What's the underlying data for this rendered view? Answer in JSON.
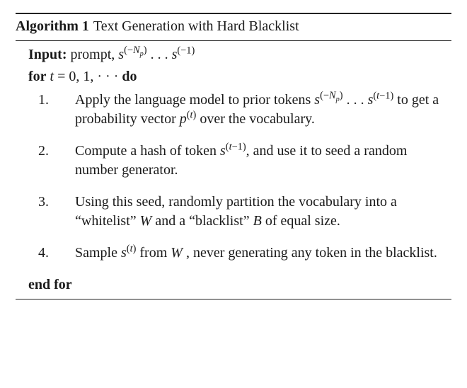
{
  "header": {
    "label": "Algorithm 1",
    "title": "Text Generation with Hard Blacklist"
  },
  "input": {
    "label": "Input:",
    "desc_pre": "prompt, ",
    "sym": "s",
    "exp_first_open": "(−",
    "exp_first_var": "N",
    "exp_first_sub": "p",
    "exp_first_close": ")",
    "ellipsis": " . . . ",
    "exp_last": "(−1)"
  },
  "forline": {
    "for": "for",
    "var": "t",
    "eq": " = 0, 1, · · · ",
    "do": "do"
  },
  "steps": [
    {
      "num": "1.",
      "pre": "Apply the language model to prior tokens ",
      "seq_s": "s",
      "seq_exp1_open": "(−",
      "seq_exp1_var": "N",
      "seq_exp1_sub": "p",
      "seq_exp1_close": ")",
      "ellipsis": " . . . ",
      "seq_exp2_open": "(",
      "seq_exp2_var": "t",
      "seq_exp2_rest": "−1)",
      "mid": " to get a probability vector ",
      "p": "p",
      "p_exp_open": "(",
      "p_exp_var": "t",
      "p_exp_close": ")",
      "post": " over the vocabulary."
    },
    {
      "num": "2.",
      "pre": "Compute a hash of token ",
      "s": "s",
      "s_exp_open": "(",
      "s_exp_var": "t",
      "s_exp_rest": "−1)",
      "post": ", and use it to seed a random number generator."
    },
    {
      "num": "3.",
      "pre": "Using this seed, randomly partition the vocabulary into a “whitelist” ",
      "W": "W",
      "mid": " and a “blacklist” ",
      "B": "B",
      "post": " of equal size."
    },
    {
      "num": "4.",
      "pre": "Sample ",
      "s": "s",
      "s_exp_open": "(",
      "s_exp_var": "t",
      "s_exp_close": ")",
      "mid": " from ",
      "W": "W",
      "post": " , never generating any token in the blacklist."
    }
  ],
  "endfor": "end for"
}
